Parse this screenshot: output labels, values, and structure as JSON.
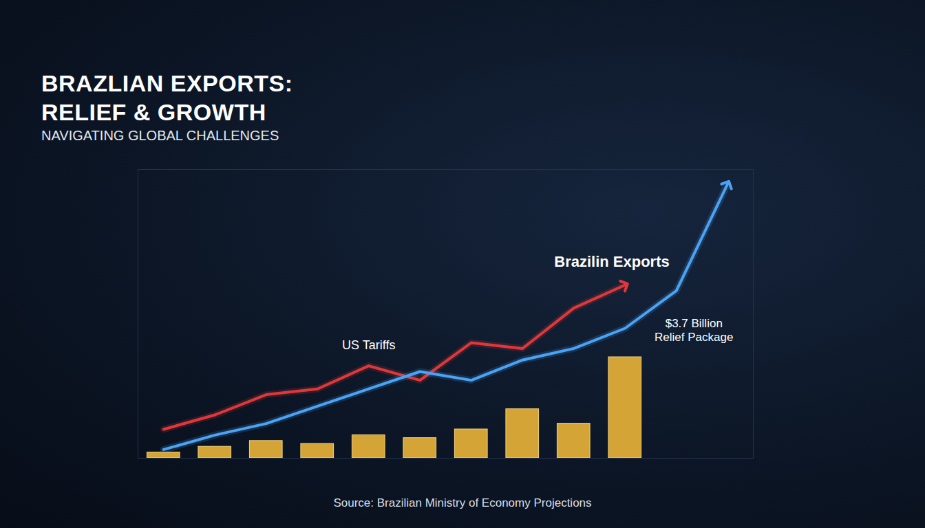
{
  "chart_data": {
    "type": "combo",
    "title": "BRAZLIAN EXPORTS: RELIEF & GROWTH",
    "subtitle": "NAVIGATING GLOBAL CHALLENGES",
    "caption": "Source: Brazilian Ministry of Economy Projections",
    "categories": [
      null,
      null,
      null,
      null,
      null,
      null,
      null,
      null,
      null,
      null,
      null,
      null
    ],
    "series": [
      {
        "type": "bar",
        "color": "#d4a437",
        "values": [
          2,
          4,
          6,
          5,
          8,
          7,
          10,
          17,
          12,
          35,
          null,
          null
        ]
      },
      {
        "name": "US Tariffs",
        "type": "line",
        "color": "#e0383a",
        "marker": "arrow",
        "values": [
          10,
          15,
          22,
          24,
          32,
          27,
          40,
          38,
          52,
          60,
          null,
          null
        ]
      },
      {
        "name": "Brazilin Exports",
        "type": "line",
        "color": "#4aa3f5",
        "marker": "arrow",
        "values": [
          3,
          8,
          12,
          18,
          24,
          30,
          27,
          34,
          38,
          45,
          58,
          95
        ]
      }
    ],
    "annotations": [
      {
        "text": "$3.7 Billion Relief Package"
      }
    ],
    "ylim": [
      0,
      100
    ],
    "tick_labels": false,
    "grid": false
  }
}
